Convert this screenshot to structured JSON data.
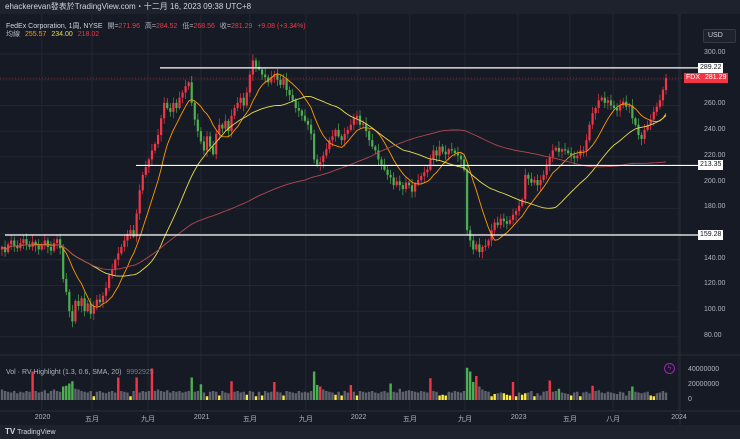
{
  "header": {
    "text": "ehackerevan發表於TradingView.com・十二月 16, 2023 09:38 UTC+8"
  },
  "legend": {
    "symbol": "FedEx Corporation, 1周, NYSE",
    "open_label": "開=",
    "open": "271.96",
    "high_label": "高=",
    "high": "284.52",
    "low_label": "低=",
    "low": "268.56",
    "close_label": "收=",
    "close": "281.29",
    "change": "+9.08 (+3.34%)",
    "ma_label": "均線",
    "ma1": "255.57",
    "ma2": "234.00",
    "ma3": "218.02"
  },
  "currency": "USD",
  "ticker_label": {
    "symbol": "FDX",
    "price": "281.29"
  },
  "horizontal_lines": [
    {
      "price": 289.22,
      "label": "289.22"
    },
    {
      "price": 213.35,
      "label": "213.35"
    },
    {
      "price": 159.28,
      "label": "159.28"
    }
  ],
  "volume_legend": {
    "title": "Vol · RV Highlight (1.3, 0.6, SMA, 20)",
    "value": "9992925"
  },
  "volume_axis": [
    "40000000",
    "20000000",
    "0"
  ],
  "footer": {
    "brand": "TradingView"
  },
  "colors": {
    "up": "#f23645",
    "down": "#4caf50",
    "neutral_volume": "#787b86",
    "low_volume": "#ffeb3b",
    "ma1": "#ff9800",
    "ma2": "#e6dd50",
    "ma3": "#b2484f",
    "background": "#161a25"
  },
  "chart_data": {
    "type": "candlestick",
    "title": "FedEx Corporation, 1周, NYSE",
    "interval": "weekly",
    "ylim": [
      70,
      310
    ],
    "price_ticks": [
      "300.00",
      "260.00",
      "240.00",
      "220.00",
      "200.00",
      "180.00",
      "140.00",
      "120.00",
      "100.00",
      "80.00"
    ],
    "time_ticks": [
      {
        "label": "2020",
        "week": 13
      },
      {
        "label": "五月",
        "week": 29.4
      },
      {
        "label": "九月",
        "week": 47.7
      },
      {
        "label": "2021",
        "week": 65
      },
      {
        "label": "五月",
        "week": 81
      },
      {
        "label": "九月",
        "week": 99.3
      },
      {
        "label": "2022",
        "week": 116.3
      },
      {
        "label": "五月",
        "week": 133.3
      },
      {
        "label": "九月",
        "week": 151.3
      },
      {
        "label": "2023",
        "week": 168.6
      },
      {
        "label": "五月",
        "week": 185.6
      },
      {
        "label": "八月",
        "week": 199.7
      },
      {
        "label": "2024",
        "week": 221
      }
    ],
    "first_open": 148,
    "last_candle": {
      "open": 271.96,
      "high": 284.52,
      "low": 268.56,
      "close": 281.29
    },
    "closes": [
      150,
      146,
      152,
      155,
      151,
      149,
      153,
      156,
      152,
      150,
      154,
      151,
      148,
      152,
      155,
      150,
      147,
      153,
      156,
      149,
      125,
      115,
      100,
      92,
      108,
      104,
      110,
      100,
      106,
      98,
      104,
      109,
      107,
      112,
      118,
      128,
      132,
      140,
      145,
      150,
      155,
      160,
      163,
      158,
      176,
      194,
      206,
      212,
      218,
      225,
      230,
      237,
      250,
      262,
      258,
      255,
      262,
      258,
      266,
      270,
      275,
      278,
      262,
      249,
      240,
      232,
      225,
      236,
      228,
      222,
      238,
      245,
      242,
      248,
      240,
      252,
      258,
      262,
      266,
      260,
      270,
      284,
      295,
      290,
      288,
      284,
      282,
      278,
      282,
      284,
      280,
      276,
      281,
      272,
      268,
      264,
      258,
      256,
      252,
      248,
      245,
      238,
      218,
      214,
      216,
      221,
      226,
      233,
      236,
      241,
      236,
      233,
      238,
      241,
      245,
      250,
      252,
      245,
      246,
      240,
      233,
      228,
      225,
      218,
      214,
      210,
      206,
      204,
      198,
      201,
      198,
      195,
      200,
      198,
      193,
      199,
      202,
      205,
      208,
      210,
      218,
      225,
      221,
      228,
      224,
      222,
      226,
      225,
      223,
      221,
      218,
      210,
      163,
      155,
      148,
      152,
      146,
      150,
      151,
      155,
      163,
      169,
      167,
      172,
      170,
      168,
      171,
      175,
      178,
      182,
      187,
      206,
      203,
      200,
      202,
      198,
      202,
      206,
      214,
      220,
      225,
      227,
      224,
      226,
      225,
      223,
      221,
      219,
      221,
      225,
      225,
      233,
      245,
      254,
      258,
      264,
      266,
      262,
      264,
      260,
      258,
      256,
      260,
      263,
      259,
      260,
      250,
      245,
      237,
      234,
      241,
      245,
      249,
      255,
      259,
      264,
      272.21,
      281.29
    ],
    "volume_millions": [
      14,
      12,
      11,
      10,
      12,
      9,
      11,
      10,
      12,
      11,
      38,
      12,
      10,
      11,
      13,
      9,
      12,
      14,
      12,
      11,
      18,
      19,
      22,
      25,
      15,
      14,
      12,
      11,
      10,
      12,
      5,
      11,
      12,
      10,
      9,
      11,
      12,
      10,
      30,
      12,
      11,
      10,
      5,
      12,
      30,
      10,
      12,
      11,
      12,
      42,
      12,
      14,
      12,
      11,
      13,
      10,
      12,
      11,
      12,
      10,
      11,
      12,
      30,
      11,
      12,
      21,
      10,
      5,
      11,
      12,
      11,
      6,
      12,
      10,
      9,
      25,
      11,
      12,
      10,
      11,
      7,
      12,
      11,
      5,
      11,
      6,
      12,
      10,
      11,
      24,
      11,
      10,
      6,
      12,
      11,
      10,
      9,
      12,
      10,
      11,
      10,
      12,
      38,
      20,
      18,
      14,
      12,
      11,
      10,
      7,
      11,
      6,
      12,
      10,
      20,
      11,
      6,
      12,
      11,
      10,
      11,
      12,
      10,
      9,
      11,
      12,
      10,
      22,
      11,
      10,
      15,
      11,
      12,
      13,
      12,
      11,
      10,
      12,
      11,
      10,
      29,
      12,
      11,
      6,
      7,
      6,
      11,
      10,
      12,
      11,
      10,
      12,
      43,
      38,
      24,
      32,
      18,
      14,
      12,
      11,
      5,
      8,
      9,
      10,
      9,
      7,
      6,
      24,
      5,
      10,
      7,
      9,
      10,
      12,
      5,
      9,
      6,
      11,
      12,
      26,
      11,
      12,
      15,
      10,
      9,
      8,
      6,
      10,
      11,
      5,
      10,
      11,
      9,
      19,
      12,
      13,
      10,
      9,
      11,
      10,
      9,
      8,
      11,
      10,
      6,
      12,
      18,
      11,
      10,
      9,
      10,
      11,
      6,
      5,
      9,
      10,
      12,
      9.99
    ]
  }
}
